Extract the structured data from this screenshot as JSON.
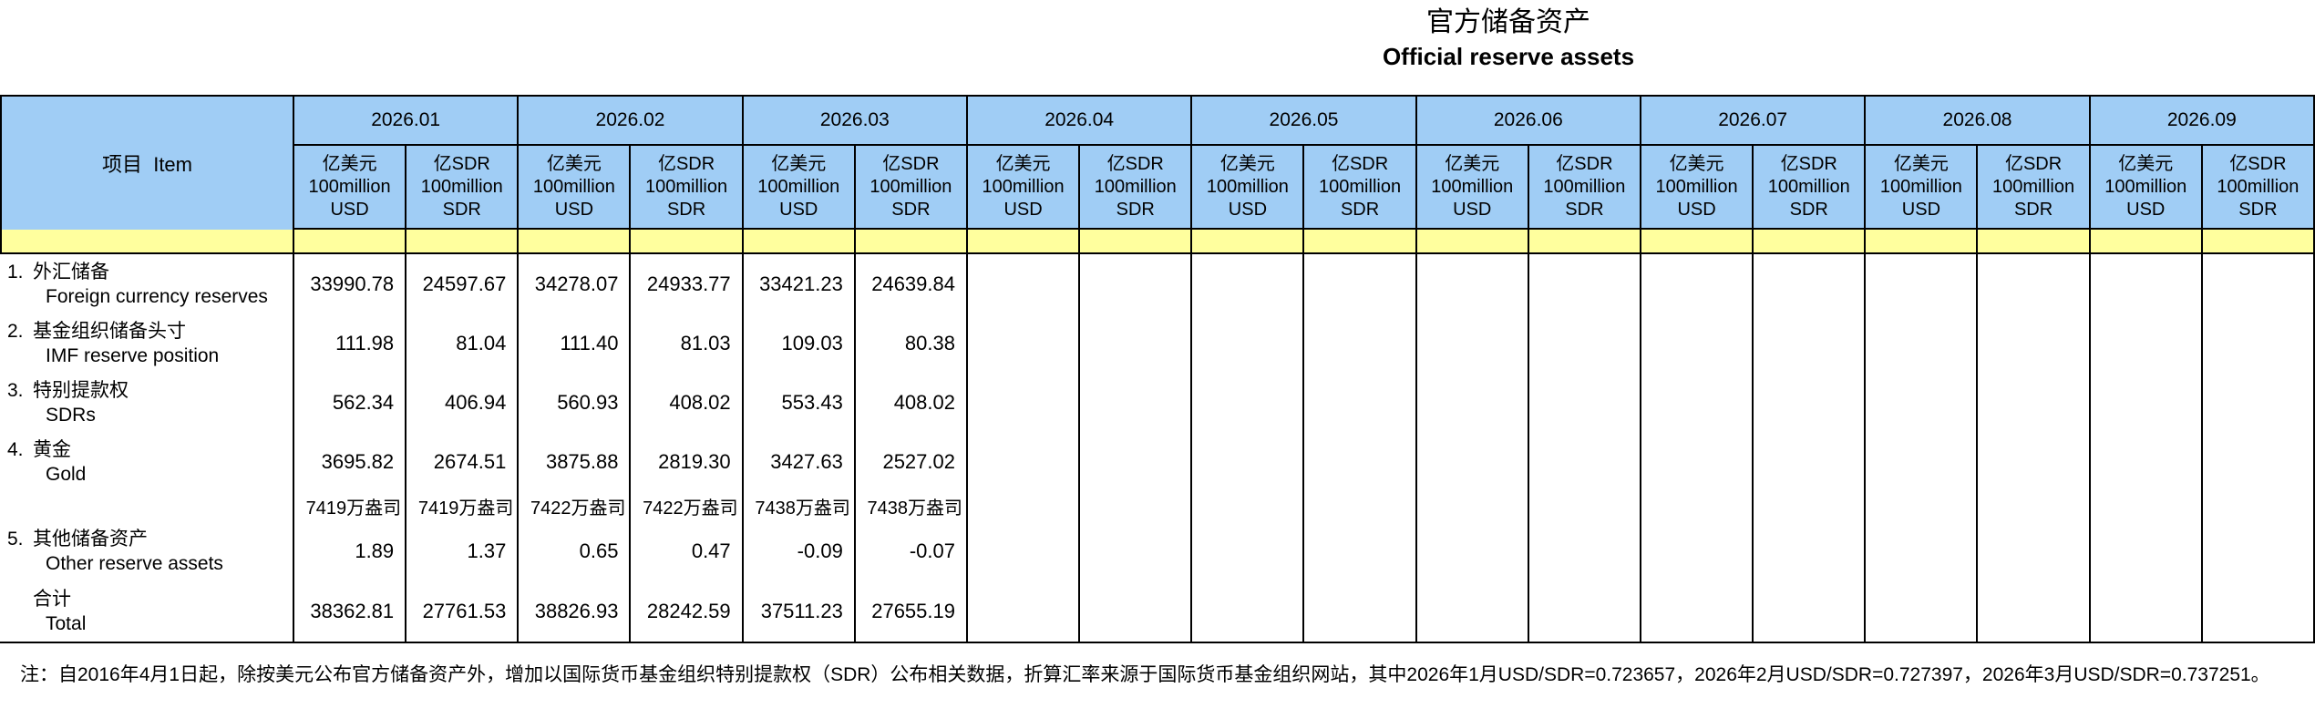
{
  "title": {
    "zh": "官方储备资产",
    "en": "Official reserve assets"
  },
  "colors": {
    "header_blue": "#A0CDF5",
    "band_yellow": "#FFFF9E",
    "border": "#000000"
  },
  "table": {
    "item_header": "项目  Item",
    "months": [
      "2026.01",
      "2026.02",
      "2026.03",
      "2026.04",
      "2026.05",
      "2026.06",
      "2026.07",
      "2026.08",
      "2026.09"
    ],
    "units": {
      "usd": {
        "zh": "亿美元",
        "line2": "100million",
        "line3": "USD"
      },
      "sdr": {
        "zh": "亿SDR",
        "line2": "100million",
        "line3": "SDR"
      }
    },
    "rows": [
      {
        "no": "1.",
        "zh": "外汇储备",
        "en": "Foreign currency reserves",
        "type": "data",
        "values": [
          "33990.78",
          "24597.67",
          "34278.07",
          "24933.77",
          "33421.23",
          "24639.84",
          "",
          "",
          "",
          "",
          "",
          "",
          "",
          "",
          "",
          "",
          "",
          ""
        ]
      },
      {
        "no": "2.",
        "zh": "基金组织储备头寸",
        "en": "IMF reserve position",
        "type": "data",
        "values": [
          "111.98",
          "81.04",
          "111.40",
          "81.03",
          "109.03",
          "80.38",
          "",
          "",
          "",
          "",
          "",
          "",
          "",
          "",
          "",
          "",
          "",
          ""
        ]
      },
      {
        "no": "3.",
        "zh": "特别提款权",
        "en": "SDRs",
        "type": "data",
        "values": [
          "562.34",
          "406.94",
          "560.93",
          "408.02",
          "553.43",
          "408.02",
          "",
          "",
          "",
          "",
          "",
          "",
          "",
          "",
          "",
          "",
          "",
          ""
        ]
      },
      {
        "no": "4.",
        "zh": "黄金",
        "en": "Gold",
        "type": "data",
        "values": [
          "3695.82",
          "2674.51",
          "3875.88",
          "2819.30",
          "3427.63",
          "2527.02",
          "",
          "",
          "",
          "",
          "",
          "",
          "",
          "",
          "",
          "",
          "",
          ""
        ]
      },
      {
        "no": "",
        "zh": "",
        "en": "",
        "type": "ounces",
        "values": [
          "7419万盎司",
          "7419万盎司",
          "7422万盎司",
          "7422万盎司",
          "7438万盎司",
          "7438万盎司",
          "",
          "",
          "",
          "",
          "",
          "",
          "",
          "",
          "",
          "",
          "",
          ""
        ]
      },
      {
        "no": "5.",
        "zh": "其他储备资产",
        "en": "Other reserve assets",
        "type": "data",
        "values": [
          "1.89",
          "1.37",
          "0.65",
          "0.47",
          "-0.09",
          "-0.07",
          "",
          "",
          "",
          "",
          "",
          "",
          "",
          "",
          "",
          "",
          "",
          ""
        ]
      },
      {
        "no": "",
        "zh": "合计",
        "en": "Total",
        "type": "total",
        "values": [
          "38362.81",
          "27761.53",
          "38826.93",
          "28242.59",
          "37511.23",
          "27655.19",
          "",
          "",
          "",
          "",
          "",
          "",
          "",
          "",
          "",
          "",
          "",
          ""
        ]
      }
    ]
  },
  "footnote": "注：自2016年4月1日起，除按美元公布官方储备资产外，增加以国际货币基金组织特别提款权（SDR）公布相关数据，折算汇率来源于国际货币基金组织网站，其中2026年1月USD/SDR=0.723657，2026年2月USD/SDR=0.727397，2026年3月USD/SDR=0.737251。"
}
